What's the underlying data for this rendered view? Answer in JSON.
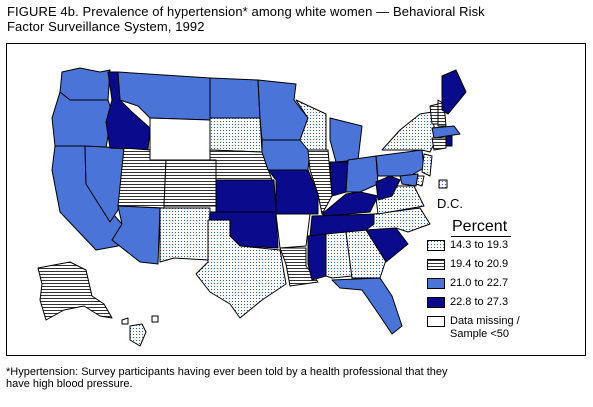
{
  "figure": {
    "title_line1": "FIGURE 4b. Prevalence of hypertension* among white women — Behavioral Risk",
    "title_line2": "Factor Surveillance System, 1992"
  },
  "legend": {
    "title": "Percent",
    "items": [
      {
        "label": "14.3 to 19.3",
        "pattern": "dots"
      },
      {
        "label": "19.4 to 20.9",
        "pattern": "hlines"
      },
      {
        "label": "21.0 to 22.7",
        "pattern": "mid-blue"
      },
      {
        "label": "22.8 to 27.3",
        "pattern": "dark-blue"
      },
      {
        "label": "Data missing / Sample <50",
        "label_line1": "Data missing /",
        "label_line2": "Sample <50",
        "pattern": "white"
      }
    ]
  },
  "dc_label": "D.C.",
  "footnote": {
    "line1": "*Hypertension: Survey participants having ever been told by a health professional that they",
    "line2": "have high blood pressure."
  },
  "colors": {
    "mid_blue": "#4a74d8",
    "dark_blue": "#0a0a8c",
    "dots": "#2a5cd6",
    "hlines": "#333333"
  }
}
